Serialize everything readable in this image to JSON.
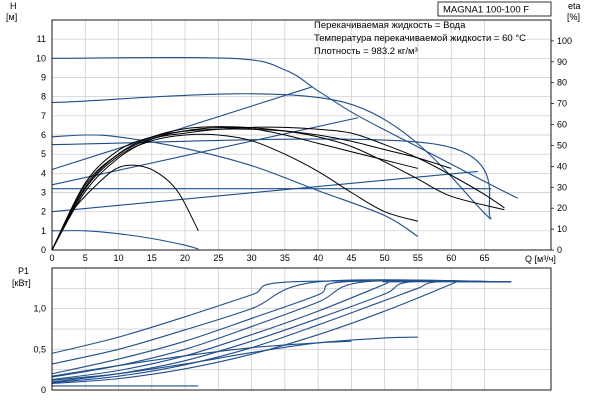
{
  "chart_data": [
    {
      "type": "line",
      "title": "MAGNA1 100-100 F",
      "annotations": [
        "Перекачиваемая жидкость = Вода",
        "Температура перекачиваемой жидкости = 60 °C",
        "Плотность = 983.2 кг/м³"
      ],
      "xlabel": "Q [м³/ч]",
      "ylabel": "H",
      "ylabel_unit": "[м]",
      "y2label": "eta",
      "y2label_unit": "[%]",
      "xlim": [
        0,
        75
      ],
      "ylim": [
        0,
        12
      ],
      "y2lim": [
        0,
        110
      ],
      "x_ticks": [
        0,
        5,
        10,
        15,
        20,
        25,
        30,
        35,
        40,
        45,
        50,
        55,
        60,
        65
      ],
      "y_ticks": [
        0,
        1,
        2,
        3,
        4,
        5,
        6,
        7,
        8,
        9,
        10,
        11
      ],
      "y2_ticks": [
        0,
        10,
        20,
        30,
        40,
        50,
        60,
        70,
        80,
        90,
        100
      ],
      "grid": true,
      "head_curves": [
        {
          "style": "blue",
          "points": [
            [
              0,
              10
            ],
            [
              27,
              10
            ],
            [
              35,
              9.4
            ],
            [
              40,
              8.3
            ],
            [
              46,
              7
            ],
            [
              56,
              5.2
            ],
            [
              66,
              3.4
            ],
            [
              70,
              2.7
            ]
          ]
        },
        {
          "style": "blue",
          "points": [
            [
              0,
              7.7
            ],
            [
              44,
              7.7
            ],
            [
              66,
              1.6
            ]
          ]
        },
        {
          "style": "blue",
          "points": [
            [
              0,
              5.5
            ],
            [
              58,
              5.5
            ],
            [
              66,
              1.6
            ]
          ]
        },
        {
          "style": "blue",
          "points": [
            [
              0,
              3.2
            ],
            [
              66,
              3.2
            ]
          ]
        },
        {
          "style": "blue",
          "points": [
            [
              0,
              5.9
            ],
            [
              5,
              6.0
            ],
            [
              10,
              5.9
            ],
            [
              20,
              5.3
            ],
            [
              30,
              4.4
            ],
            [
              40,
              3.1
            ],
            [
              50,
              1.8
            ],
            [
              55,
              0.7
            ]
          ]
        },
        {
          "style": "blue",
          "points": [
            [
              0,
              1.0
            ],
            [
              5,
              1.0
            ],
            [
              10,
              0.85
            ],
            [
              15,
              0.6
            ],
            [
              20,
              0.25
            ],
            [
              22,
              0.05
            ]
          ]
        },
        {
          "style": "blue",
          "points": [
            [
              0,
              4.2
            ],
            [
              39,
              8.5
            ]
          ]
        },
        {
          "style": "blue",
          "points": [
            [
              0,
              3.4
            ],
            [
              46,
              6.9
            ]
          ]
        },
        {
          "style": "blue",
          "points": [
            [
              0,
              2.0
            ],
            [
              64,
              4.1
            ]
          ]
        },
        {
          "style": "black",
          "points": [
            [
              0,
              0
            ],
            [
              3,
              2.0
            ],
            [
              7,
              3.5
            ],
            [
              10,
              4.3
            ],
            [
              13,
              4.4
            ],
            [
              16,
              4.0
            ],
            [
              19,
              3.0
            ],
            [
              22,
              1.0
            ]
          ]
        },
        {
          "style": "black",
          "points": [
            [
              0,
              0
            ],
            [
              5,
              3.2
            ],
            [
              10,
              4.9
            ],
            [
              15,
              5.7
            ],
            [
              20,
              6.0
            ],
            [
              25,
              6.0
            ],
            [
              30,
              5.7
            ],
            [
              35,
              5.0
            ],
            [
              40,
              4.1
            ],
            [
              45,
              3.0
            ],
            [
              50,
              2.0
            ],
            [
              55,
              1.5
            ]
          ]
        },
        {
          "style": "black",
          "points": [
            [
              0,
              0
            ],
            [
              5,
              3.5
            ],
            [
              10,
              5.2
            ],
            [
              15,
              5.9
            ],
            [
              20,
              6.2
            ],
            [
              25,
              6.3
            ],
            [
              30,
              6.3
            ],
            [
              35,
              6.2
            ],
            [
              40,
              5.9
            ],
            [
              45,
              5.4
            ],
            [
              50,
              4.6
            ],
            [
              55,
              3.7
            ],
            [
              60,
              2.8
            ],
            [
              68,
              2.1
            ]
          ]
        },
        {
          "style": "black",
          "points": [
            [
              0,
              0
            ],
            [
              5,
              3.4
            ],
            [
              10,
              5.0
            ],
            [
              15,
              5.8
            ],
            [
              20,
              6.1
            ],
            [
              25,
              6.3
            ],
            [
              30,
              6.4
            ],
            [
              35,
              6.4
            ],
            [
              40,
              6.3
            ],
            [
              45,
              6.1
            ],
            [
              50,
              5.5
            ],
            [
              55,
              4.8
            ],
            [
              60,
              3.9
            ],
            [
              65,
              2.9
            ],
            [
              68,
              2.2
            ]
          ]
        }
      ],
      "efficiency_curves": [
        {
          "style": "black",
          "points": [
            [
              0,
              0
            ],
            [
              5,
              28
            ],
            [
              10,
              44
            ],
            [
              15,
              53
            ],
            [
              20,
              57
            ],
            [
              25,
              58.5
            ],
            [
              30,
              58
            ],
            [
              35,
              55
            ],
            [
              40,
              51
            ],
            [
              45,
              47
            ],
            [
              50,
              43
            ],
            [
              55,
              39
            ]
          ]
        },
        {
          "style": "black",
          "points": [
            [
              0,
              0
            ],
            [
              5,
              30
            ],
            [
              10,
              46
            ],
            [
              15,
              54
            ],
            [
              20,
              58
            ],
            [
              25,
              59
            ],
            [
              30,
              58.5
            ],
            [
              35,
              57
            ],
            [
              40,
              55
            ],
            [
              45,
              52
            ],
            [
              50,
              48
            ],
            [
              55,
              44
            ],
            [
              60,
              39
            ]
          ]
        }
      ]
    },
    {
      "type": "line",
      "ylabel": "P1",
      "ylabel_unit": "[кВт]",
      "xlim": [
        0,
        75
      ],
      "ylim": [
        0,
        1.5
      ],
      "y_ticks": [
        0,
        0.5,
        1.0
      ],
      "y_tick_labels": [
        "0",
        "0,5",
        "1,0"
      ],
      "grid": true,
      "series": [
        {
          "points": [
            [
              0,
              0.45
            ],
            [
              10,
              0.65
            ],
            [
              20,
              0.9
            ],
            [
              30,
              1.17
            ],
            [
              36,
              1.33
            ],
            [
              69,
              1.33
            ]
          ]
        },
        {
          "points": [
            [
              0,
              0.32
            ],
            [
              10,
              0.5
            ],
            [
              20,
              0.74
            ],
            [
              30,
              1.0
            ],
            [
              40,
              1.33
            ],
            [
              69,
              1.33
            ]
          ]
        },
        {
          "points": [
            [
              0,
              0.2
            ],
            [
              10,
              0.38
            ],
            [
              20,
              0.6
            ],
            [
              30,
              0.88
            ],
            [
              40,
              1.17
            ],
            [
              44,
              1.33
            ],
            [
              69,
              1.33
            ]
          ]
        },
        {
          "points": [
            [
              0,
              0.16
            ],
            [
              10,
              0.3
            ],
            [
              20,
              0.5
            ],
            [
              30,
              0.78
            ],
            [
              40,
              1.08
            ],
            [
              47,
              1.33
            ],
            [
              69,
              1.33
            ]
          ]
        },
        {
          "points": [
            [
              0,
              0.13
            ],
            [
              10,
              0.24
            ],
            [
              20,
              0.42
            ],
            [
              30,
              0.68
            ],
            [
              40,
              0.97
            ],
            [
              50,
              1.3
            ],
            [
              51,
              1.33
            ],
            [
              69,
              1.33
            ]
          ]
        },
        {
          "points": [
            [
              0,
              0.1
            ],
            [
              10,
              0.2
            ],
            [
              20,
              0.36
            ],
            [
              30,
              0.6
            ],
            [
              40,
              0.88
            ],
            [
              50,
              1.18
            ],
            [
              54,
              1.33
            ],
            [
              69,
              1.33
            ]
          ]
        },
        {
          "points": [
            [
              0,
              0.09
            ],
            [
              10,
              0.17
            ],
            [
              20,
              0.31
            ],
            [
              30,
              0.52
            ],
            [
              40,
              0.8
            ],
            [
              50,
              1.1
            ],
            [
              55,
              1.25
            ],
            [
              58,
              1.33
            ],
            [
              69,
              1.33
            ]
          ]
        },
        {
          "points": [
            [
              0,
              0.08
            ],
            [
              10,
              0.14
            ],
            [
              20,
              0.26
            ],
            [
              30,
              0.44
            ],
            [
              40,
              0.68
            ],
            [
              50,
              0.97
            ],
            [
              60,
              1.3
            ],
            [
              61,
              1.33
            ],
            [
              69,
              1.33
            ]
          ]
        },
        {
          "points": [
            [
              0,
              0.12
            ],
            [
              10,
              0.2
            ],
            [
              20,
              0.32
            ],
            [
              30,
              0.46
            ],
            [
              40,
              0.58
            ],
            [
              50,
              0.64
            ],
            [
              55,
              0.65
            ]
          ]
        },
        {
          "points": [
            [
              0,
              0.17
            ],
            [
              10,
              0.3
            ],
            [
              20,
              0.42
            ],
            [
              30,
              0.52
            ],
            [
              40,
              0.58
            ],
            [
              45,
              0.6
            ]
          ]
        },
        {
          "points": [
            [
              0,
              0.05
            ],
            [
              22,
              0.05
            ]
          ]
        }
      ]
    }
  ]
}
